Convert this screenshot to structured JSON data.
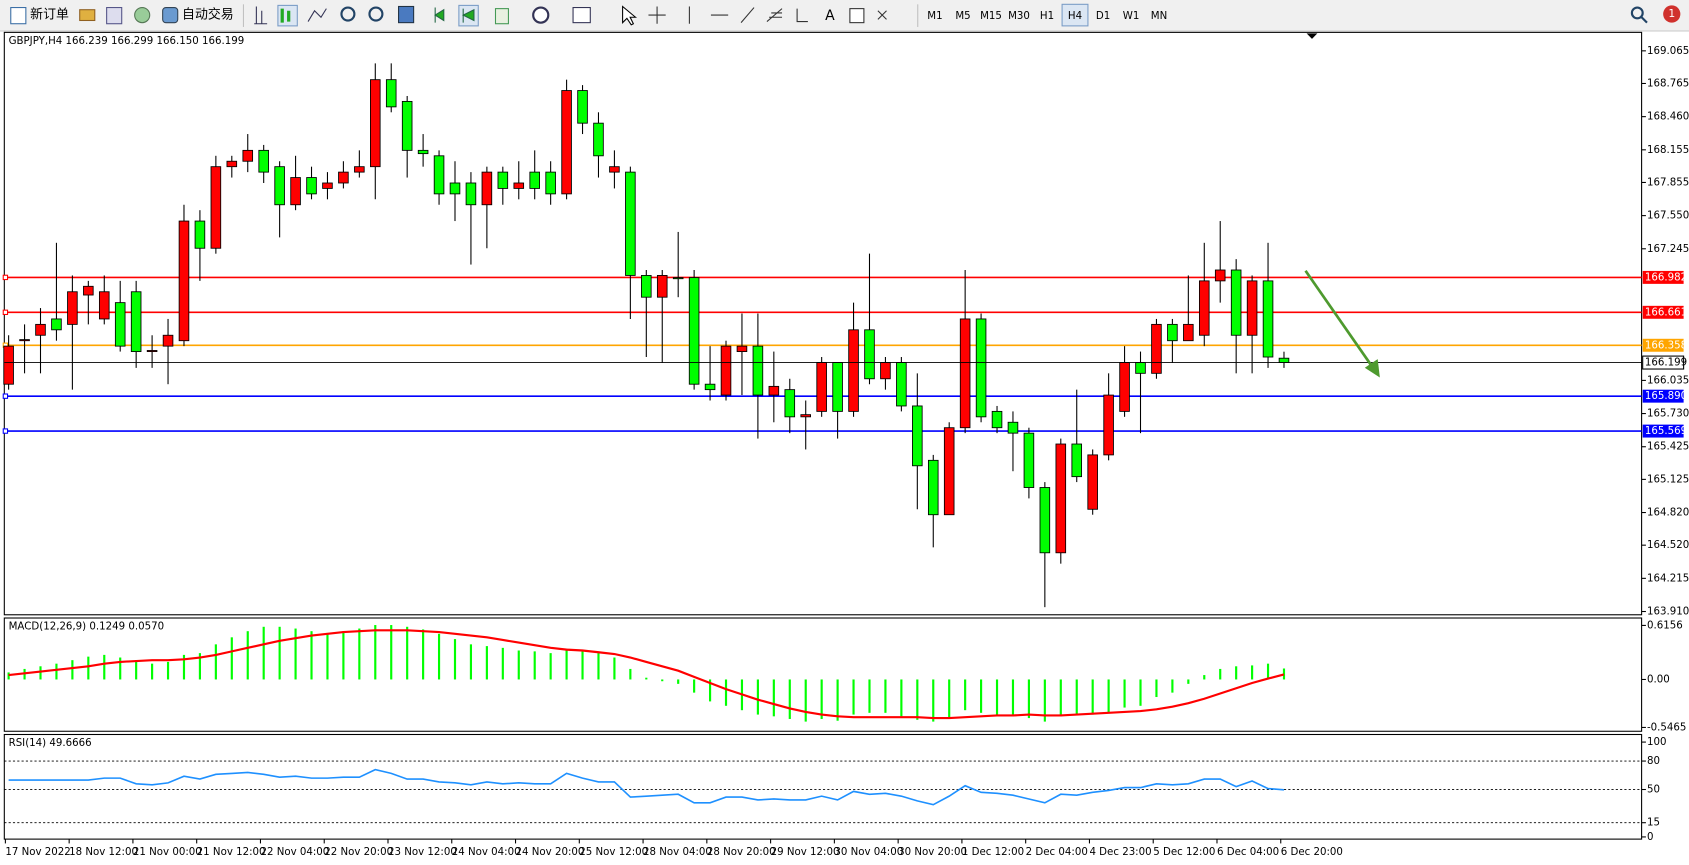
{
  "toolbar": {
    "buttons": [
      "新订单",
      "自动交易"
    ],
    "timeframes": [
      {
        "label": "M1"
      },
      {
        "label": "M5"
      },
      {
        "label": "M15"
      },
      {
        "label": "M30"
      },
      {
        "label": "H1"
      },
      {
        "label": "H4",
        "selected": true
      },
      {
        "label": "D1"
      },
      {
        "label": "W1"
      },
      {
        "label": "MN"
      }
    ],
    "notifications": 1
  },
  "chart_data": [
    {
      "type": "candlestick",
      "title": "GBPJPY,H4  166.239 166.299 166.150 166.199",
      "categories": [
        "17 Nov 2022",
        null,
        null,
        null,
        "18 Nov 12:00",
        null,
        null,
        null,
        "21 Nov 00:00",
        null,
        null,
        null,
        "21 Nov 12:00",
        null,
        null,
        null,
        "22 Nov 04:00",
        null,
        null,
        null,
        "22 Nov 20:00",
        null,
        null,
        null,
        "23 Nov 12:00",
        null,
        null,
        null,
        "24 Nov 04:00",
        null,
        null,
        null,
        "24 Nov 20:00",
        null,
        null,
        null,
        "25 Nov 12:00",
        null,
        null,
        null,
        "28 Nov 04:00",
        null,
        null,
        null,
        "28 Nov 20:00",
        null,
        null,
        null,
        "29 Nov 12:00",
        null,
        null,
        null,
        "30 Nov 04:00",
        null,
        null,
        null,
        "30 Nov 20:00",
        null,
        null,
        null,
        "1 Dec 12:00",
        null,
        null,
        null,
        "2 Dec 04:00",
        null,
        null,
        null,
        "4 Dec 23:00",
        null,
        null,
        null,
        "5 Dec 12:00",
        null,
        null,
        null,
        "6 Dec 04:00",
        null,
        null,
        null,
        "6 Dec 20:00"
      ],
      "open": [
        166.0,
        166.4,
        166.45,
        166.6,
        166.55,
        166.82,
        166.6,
        166.75,
        166.85,
        166.3,
        166.35,
        166.4,
        167.5,
        167.25,
        168.0,
        168.05,
        168.15,
        168.0,
        167.65,
        167.9,
        167.8,
        167.85,
        167.95,
        168.0,
        168.8,
        168.6,
        168.15,
        168.1,
        167.85,
        167.85,
        167.65,
        167.95,
        167.8,
        167.95,
        167.95,
        167.75,
        168.7,
        168.4,
        167.95,
        167.95,
        167.0,
        166.8,
        166.98,
        166.98,
        166.0,
        165.9,
        166.3,
        166.35,
        165.9,
        165.95,
        165.7,
        165.75,
        166.2,
        165.75,
        166.5,
        166.05,
        166.2,
        165.8,
        165.3,
        164.8,
        165.6,
        166.6,
        165.75,
        165.65,
        165.55,
        165.05,
        164.45,
        165.45,
        164.85,
        165.35,
        165.75,
        166.2,
        166.1,
        166.55,
        166.4,
        166.45,
        166.95,
        167.05,
        166.45,
        166.95,
        166.239
      ],
      "high": [
        166.45,
        166.55,
        166.7,
        167.3,
        167.0,
        166.95,
        167.0,
        166.95,
        166.95,
        166.45,
        166.6,
        167.65,
        167.6,
        168.1,
        168.1,
        168.3,
        168.2,
        168.05,
        168.1,
        168.0,
        167.95,
        168.05,
        168.15,
        168.95,
        168.95,
        168.65,
        168.3,
        168.15,
        168.05,
        167.95,
        168.0,
        168.0,
        168.05,
        168.15,
        168.05,
        168.8,
        168.75,
        168.5,
        168.15,
        168.0,
        167.05,
        167.05,
        167.4,
        167.05,
        166.35,
        166.4,
        166.65,
        166.65,
        166.3,
        166.05,
        165.85,
        166.25,
        166.2,
        166.75,
        167.2,
        166.25,
        166.25,
        166.1,
        165.35,
        165.65,
        167.05,
        166.65,
        165.8,
        165.75,
        165.6,
        165.1,
        165.5,
        165.95,
        165.4,
        166.1,
        166.35,
        166.3,
        166.6,
        166.6,
        167.0,
        167.3,
        167.5,
        167.15,
        167.0,
        167.3,
        166.299
      ],
      "low": [
        165.95,
        166.1,
        166.1,
        166.4,
        165.95,
        166.55,
        166.55,
        166.3,
        166.15,
        166.15,
        166.0,
        166.35,
        166.95,
        167.2,
        167.9,
        167.95,
        167.85,
        167.35,
        167.6,
        167.7,
        167.7,
        167.8,
        167.9,
        167.7,
        168.5,
        167.9,
        168.0,
        167.65,
        167.5,
        167.1,
        167.25,
        167.65,
        167.7,
        167.7,
        167.65,
        167.7,
        168.3,
        167.9,
        167.8,
        166.6,
        166.25,
        166.2,
        166.8,
        165.95,
        165.85,
        165.85,
        165.9,
        165.5,
        165.65,
        165.55,
        165.4,
        165.7,
        165.5,
        165.7,
        166.0,
        165.95,
        165.75,
        164.85,
        164.5,
        164.8,
        165.55,
        165.65,
        165.55,
        165.2,
        164.95,
        163.95,
        164.35,
        165.1,
        164.8,
        165.3,
        165.7,
        165.55,
        166.05,
        166.2,
        166.4,
        166.35,
        166.75,
        166.1,
        166.1,
        166.15,
        166.15
      ],
      "close": [
        166.35,
        166.41,
        166.55,
        166.5,
        166.85,
        166.9,
        166.85,
        166.35,
        166.3,
        166.31,
        166.45,
        167.5,
        167.25,
        168.0,
        168.05,
        168.15,
        167.95,
        167.65,
        167.9,
        167.75,
        167.85,
        167.95,
        168.0,
        168.8,
        168.55,
        168.15,
        168.12,
        167.75,
        167.75,
        167.65,
        167.95,
        167.8,
        167.85,
        167.8,
        167.75,
        168.7,
        168.4,
        168.1,
        168.0,
        167.0,
        166.8,
        167.0,
        166.97,
        166.0,
        165.95,
        166.35,
        166.35,
        165.9,
        165.98,
        165.7,
        165.72,
        166.2,
        165.75,
        166.5,
        166.05,
        166.2,
        165.8,
        165.25,
        164.8,
        165.6,
        166.6,
        165.7,
        165.6,
        165.55,
        165.05,
        164.45,
        165.45,
        165.15,
        165.35,
        165.9,
        166.2,
        166.1,
        166.55,
        166.4,
        166.55,
        166.95,
        167.05,
        166.45,
        166.95,
        166.25,
        166.199
      ],
      "up_color": "#ff0000",
      "down_color": "#00ff00",
      "ylim": [
        163.88,
        169.235
      ],
      "yticks": [
        169.065,
        168.765,
        {
          "value": 168.46,
          "label": "168.460"
        },
        168.155,
        167.855,
        {
          "value": 167.55,
          "label": "167.550"
        },
        167.245,
        166.035,
        {
          "value": 165.73,
          "label": "165.730"
        },
        165.425,
        165.125,
        {
          "value": 164.82,
          "label": "164.820"
        },
        {
          "value": 164.52,
          "label": "164.520"
        },
        164.215,
        {
          "value": 163.91,
          "label": "163.910"
        }
      ],
      "levels": [
        {
          "value": 166.982,
          "color": "#ff0000"
        },
        {
          "value": 166.661,
          "color": "#ff0000"
        },
        {
          "value": 166.358,
          "color": "#ffa500"
        },
        {
          "value": 165.89,
          "label": "165.890",
          "color": "#0000ff"
        },
        {
          "value": 165.569,
          "color": "#0000ff"
        }
      ],
      "grid": false
    },
    {
      "type": "macd",
      "title": "MACD(12,26,9) 0.1249 0.0570",
      "series": [
        {
          "type": "bar",
          "color": "#00ff00",
          "values": [
            0.08,
            0.12,
            0.15,
            0.18,
            0.22,
            0.26,
            0.28,
            0.25,
            0.22,
            0.18,
            0.2,
            0.28,
            0.3,
            0.4,
            0.48,
            0.55,
            0.6,
            0.6,
            0.58,
            0.55,
            0.53,
            0.55,
            0.58,
            0.62,
            0.62,
            0.6,
            0.57,
            0.52,
            0.46,
            0.4,
            0.38,
            0.36,
            0.33,
            0.32,
            0.3,
            0.35,
            0.34,
            0.3,
            0.25,
            0.12,
            0.02,
            -0.02,
            -0.05,
            -0.15,
            -0.25,
            -0.3,
            -0.35,
            -0.4,
            -0.42,
            -0.45,
            -0.48,
            -0.45,
            -0.47,
            -0.4,
            -0.38,
            -0.38,
            -0.42,
            -0.46,
            -0.48,
            -0.45,
            -0.35,
            -0.38,
            -0.4,
            -0.42,
            -0.44,
            -0.48,
            -0.42,
            -0.4,
            -0.4,
            -0.38,
            -0.32,
            -0.3,
            -0.2,
            -0.15,
            -0.05,
            0.05,
            0.12,
            0.15,
            0.16,
            0.18,
            0.1249
          ]
        },
        {
          "type": "line",
          "color": "#ff0000",
          "values": [
            0.05,
            0.07,
            0.09,
            0.11,
            0.13,
            0.15,
            0.18,
            0.2,
            0.21,
            0.22,
            0.22,
            0.23,
            0.25,
            0.28,
            0.32,
            0.36,
            0.4,
            0.44,
            0.47,
            0.5,
            0.52,
            0.54,
            0.55,
            0.56,
            0.56,
            0.56,
            0.55,
            0.54,
            0.52,
            0.5,
            0.48,
            0.45,
            0.42,
            0.39,
            0.36,
            0.34,
            0.33,
            0.31,
            0.29,
            0.25,
            0.2,
            0.15,
            0.1,
            0.03,
            -0.04,
            -0.11,
            -0.17,
            -0.23,
            -0.28,
            -0.33,
            -0.37,
            -0.4,
            -0.42,
            -0.43,
            -0.43,
            -0.43,
            -0.43,
            -0.43,
            -0.44,
            -0.44,
            -0.43,
            -0.42,
            -0.41,
            -0.41,
            -0.4,
            -0.41,
            -0.41,
            -0.4,
            -0.39,
            -0.38,
            -0.37,
            -0.36,
            -0.34,
            -0.31,
            -0.27,
            -0.22,
            -0.16,
            -0.1,
            -0.04,
            0.01,
            0.057
          ]
        }
      ],
      "ylim": [
        -0.59,
        0.7
      ],
      "yticks": [
        0.6156,
        {
          "value": 0,
          "label": "0.00"
        },
        -0.5465
      ]
    },
    {
      "type": "line",
      "title": "RSI(14) 49.6666",
      "color": "#1e90ff",
      "values": [
        60,
        60,
        60,
        60,
        60,
        60,
        62,
        62,
        56,
        55,
        57,
        64,
        61,
        66,
        67,
        68,
        66,
        63,
        64,
        62,
        62,
        63,
        63,
        71,
        67,
        61,
        61,
        58,
        57,
        55,
        58,
        56,
        57,
        56,
        56,
        67,
        62,
        58,
        58,
        42,
        43,
        44,
        45,
        36,
        36,
        42,
        42,
        39,
        40,
        39,
        39,
        43,
        39,
        48,
        45,
        46,
        43,
        38,
        34,
        43,
        54,
        47,
        46,
        44,
        40,
        36,
        45,
        44,
        47,
        49,
        52,
        52,
        56,
        55,
        56,
        61,
        61,
        53,
        59,
        51,
        49.6666
      ],
      "ylim": [
        -2.3,
        108
      ],
      "yticks": [
        100,
        80,
        50,
        15,
        0
      ],
      "levels": [
        80,
        50,
        15
      ]
    }
  ]
}
